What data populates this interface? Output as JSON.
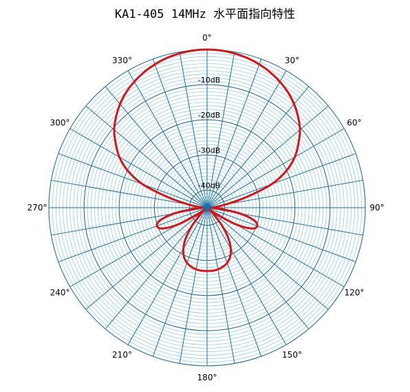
{
  "chart_data": {
    "type": "polar-line",
    "title": "KA1-405 14MHz 水平面指向特性",
    "angle_labels": [
      "0°",
      "30°",
      "60°",
      "90°",
      "120°",
      "150°",
      "180°",
      "210°",
      "240°",
      "270°",
      "300°",
      "330°"
    ],
    "angle_ticks_deg": [
      0,
      30,
      60,
      90,
      120,
      150,
      180,
      210,
      240,
      270,
      300,
      330
    ],
    "angular_grid_step_deg": 10,
    "radial_axis": {
      "unit": "dB",
      "min_db": -45,
      "max_db": 0,
      "minor_ring_step_db": 1,
      "labels": [
        {
          "text": "-10dB",
          "db": -10
        },
        {
          "text": "-20dB",
          "db": -20
        },
        {
          "text": "-30dB",
          "db": -30
        },
        {
          "text": "-40dB",
          "db": -40
        }
      ]
    },
    "series": [
      {
        "color": "#dd1111",
        "points": [
          {
            "angle": 0,
            "db": 0.0
          },
          {
            "angle": 5,
            "db": -0.1
          },
          {
            "angle": 10,
            "db": -0.4
          },
          {
            "angle": 15,
            "db": -0.9
          },
          {
            "angle": 20,
            "db": -1.6
          },
          {
            "angle": 25,
            "db": -2.5
          },
          {
            "angle": 30,
            "db": -3.6
          },
          {
            "angle": 35,
            "db": -4.9
          },
          {
            "angle": 40,
            "db": -6.5
          },
          {
            "angle": 45,
            "db": -8.4
          },
          {
            "angle": 50,
            "db": -10.5
          },
          {
            "angle": 55,
            "db": -13.3
          },
          {
            "angle": 60,
            "db": -16.2
          },
          {
            "angle": 65,
            "db": -20.1
          },
          {
            "angle": 70,
            "db": -25.5
          },
          {
            "angle": 75,
            "db": -33.5
          },
          {
            "angle": 80,
            "db": -39.5
          },
          {
            "angle": 85,
            "db": -42.5
          },
          {
            "angle": 90,
            "db": -43.5
          },
          {
            "angle": 95,
            "db": -41.0
          },
          {
            "angle": 100,
            "db": -35.5
          },
          {
            "angle": 105,
            "db": -31.2
          },
          {
            "angle": 110,
            "db": -29.8
          },
          {
            "angle": 115,
            "db": -31.0
          },
          {
            "angle": 120,
            "db": -35.5
          },
          {
            "angle": 125,
            "db": -42.0
          },
          {
            "angle": 130,
            "db": -44.0
          },
          {
            "angle": 135,
            "db": -42.5
          },
          {
            "angle": 140,
            "db": -38.5
          },
          {
            "angle": 145,
            "db": -34.5
          },
          {
            "angle": 150,
            "db": -31.5
          },
          {
            "angle": 155,
            "db": -29.5
          },
          {
            "angle": 160,
            "db": -28.3
          },
          {
            "angle": 165,
            "db": -27.6
          },
          {
            "angle": 170,
            "db": -27.2
          },
          {
            "angle": 175,
            "db": -27.0
          },
          {
            "angle": 180,
            "db": -27.0
          },
          {
            "angle": 185,
            "db": -27.0
          },
          {
            "angle": 190,
            "db": -27.2
          },
          {
            "angle": 195,
            "db": -27.6
          },
          {
            "angle": 200,
            "db": -28.3
          },
          {
            "angle": 205,
            "db": -29.5
          },
          {
            "angle": 210,
            "db": -31.5
          },
          {
            "angle": 215,
            "db": -34.5
          },
          {
            "angle": 220,
            "db": -38.5
          },
          {
            "angle": 225,
            "db": -42.5
          },
          {
            "angle": 230,
            "db": -44.0
          },
          {
            "angle": 235,
            "db": -42.0
          },
          {
            "angle": 240,
            "db": -35.5
          },
          {
            "angle": 245,
            "db": -31.0
          },
          {
            "angle": 250,
            "db": -29.8
          },
          {
            "angle": 255,
            "db": -31.2
          },
          {
            "angle": 260,
            "db": -35.5
          },
          {
            "angle": 265,
            "db": -41.0
          },
          {
            "angle": 270,
            "db": -43.5
          },
          {
            "angle": 275,
            "db": -42.5
          },
          {
            "angle": 280,
            "db": -39.5
          },
          {
            "angle": 285,
            "db": -33.5
          },
          {
            "angle": 290,
            "db": -25.5
          },
          {
            "angle": 295,
            "db": -20.1
          },
          {
            "angle": 300,
            "db": -16.2
          },
          {
            "angle": 305,
            "db": -13.3
          },
          {
            "angle": 310,
            "db": -10.5
          },
          {
            "angle": 315,
            "db": -8.4
          },
          {
            "angle": 320,
            "db": -6.5
          },
          {
            "angle": 325,
            "db": -4.9
          },
          {
            "angle": 330,
            "db": -3.6
          },
          {
            "angle": 335,
            "db": -2.5
          },
          {
            "angle": 340,
            "db": -1.6
          },
          {
            "angle": 345,
            "db": -0.9
          },
          {
            "angle": 350,
            "db": -0.4
          },
          {
            "angle": 355,
            "db": -0.1
          }
        ]
      }
    ],
    "colors": {
      "grid_major": "#1a6fa8",
      "grid_minor": "#7fc8e8",
      "pattern": "#dd1111"
    }
  }
}
